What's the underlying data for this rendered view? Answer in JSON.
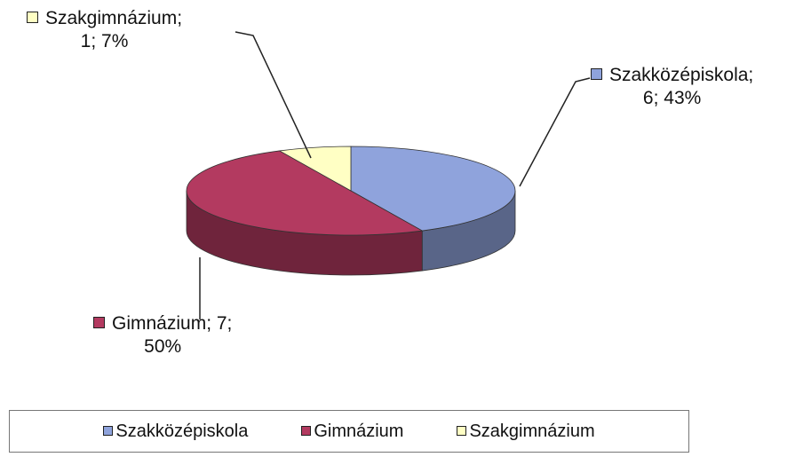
{
  "chart_data": {
    "type": "pie3d",
    "categories": [
      "Szakközépiskola",
      "Gimnázium",
      "Szakgimnázium"
    ],
    "values": [
      6,
      7,
      1
    ],
    "data_labels": [
      "Szakközépiskola;\n6; 43%",
      "Gimnázium;  7;\n50%",
      "Szakgimnázium;\n1; 7%"
    ],
    "colors": [
      "#8fa3dc",
      "#b33a60",
      "#ffffc4"
    ],
    "legend": "bottom"
  }
}
